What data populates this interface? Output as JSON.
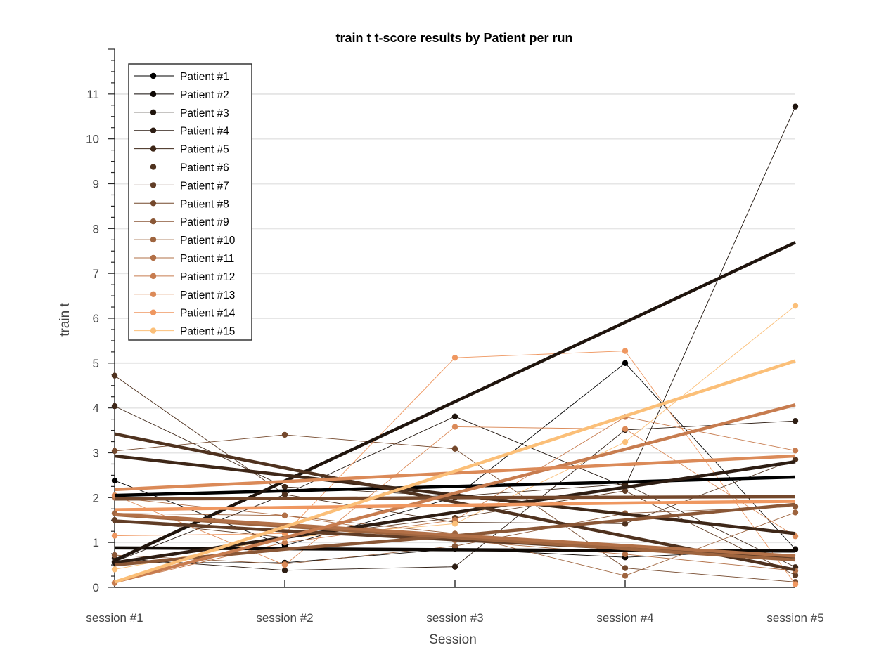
{
  "chart_data": {
    "type": "line",
    "title": "train t  t-score results by Patient per run",
    "xlabel": "Session",
    "ylabel": "train t",
    "categories": [
      "session #1",
      "session #2",
      "session #3",
      "session #4",
      "session #5"
    ],
    "ylim": [
      0,
      12
    ],
    "yticks": [
      0,
      1,
      2,
      3,
      4,
      5,
      6,
      7,
      8,
      9,
      10,
      11
    ],
    "grid": "horizontal",
    "legend_position": "top-left",
    "series": [
      {
        "name": "Patient #1",
        "color": "#000000",
        "values": [
          2.38,
          0.93,
          2.01,
          5.0,
          0.85
        ],
        "trend": [
          2.05,
          2.15,
          2.25,
          2.35,
          2.46
        ]
      },
      {
        "name": "Patient #2",
        "color": "#0f0905",
        "values": [
          0.55,
          0.55,
          0.86,
          0.67,
          0.85
        ],
        "trend": [
          0.88,
          0.86,
          0.84,
          0.82,
          0.81
        ]
      },
      {
        "name": "Patient #3",
        "color": "#1f140d",
        "values": [
          0.57,
          2.07,
          3.81,
          2.24,
          10.72
        ],
        "trend": [
          0.6,
          2.37,
          4.14,
          5.91,
          7.69
        ]
      },
      {
        "name": "Patient #4",
        "color": "#2d1d13",
        "values": [
          0.65,
          0.38,
          0.46,
          3.51,
          3.71
        ],
        "trend": [
          0.55,
          1.11,
          1.67,
          2.23,
          2.8
        ]
      },
      {
        "name": "Patient #5",
        "color": "#3e2718",
        "values": [
          4.04,
          2.24,
          2.03,
          2.3,
          0.45
        ],
        "trend": [
          2.93,
          2.5,
          2.06,
          1.63,
          1.2
        ]
      },
      {
        "name": "Patient #6",
        "color": "#4f321f",
        "values": [
          4.72,
          2.07,
          1.45,
          1.42,
          2.85
        ],
        "trend": [
          3.42,
          2.66,
          1.9,
          1.14,
          0.39
        ]
      },
      {
        "name": "Patient #7",
        "color": "#613d26",
        "values": [
          1.5,
          1.11,
          1.55,
          2.15,
          0.27
        ],
        "trend": [
          1.48,
          1.26,
          1.06,
          0.87,
          0.68
        ]
      },
      {
        "name": "Patient #8",
        "color": "#74482c",
        "values": [
          3.04,
          3.4,
          3.09,
          0.43,
          0.12
        ],
        "trend": [
          1.97,
          1.98,
          2.0,
          2.01,
          2.02
        ]
      },
      {
        "name": "Patient #9",
        "color": "#8a5736",
        "values": [
          0.72,
          0.52,
          0.92,
          1.65,
          1.8
        ],
        "trend": [
          0.5,
          0.85,
          1.15,
          1.5,
          1.85
        ]
      },
      {
        "name": "Patient #10",
        "color": "#9e643e",
        "values": [
          1.65,
          1.6,
          1.2,
          0.26,
          1.67
        ],
        "trend": [
          1.62,
          1.36,
          1.11,
          0.86,
          0.61
        ]
      },
      {
        "name": "Patient #11",
        "color": "#b27047",
        "values": [
          2.0,
          1.6,
          1.05,
          0.74,
          0.37
        ],
        "trend": [
          1.63,
          1.4,
          1.16,
          0.93,
          0.7
        ]
      },
      {
        "name": "Patient #12",
        "color": "#c77c4f",
        "values": [
          0.1,
          1.0,
          1.5,
          3.8,
          3.05
        ],
        "trend": [
          0.12,
          1.11,
          2.1,
          3.08,
          4.07
        ]
      },
      {
        "name": "Patient #13",
        "color": "#db8a58",
        "values": [
          2.05,
          0.5,
          3.58,
          3.53,
          1.14
        ],
        "trend": [
          2.18,
          2.36,
          2.55,
          2.74,
          2.93
        ]
      },
      {
        "name": "Patient #14",
        "color": "#ef9760",
        "values": [
          1.15,
          1.2,
          5.12,
          5.27,
          0.07
        ],
        "trend": [
          1.73,
          1.78,
          1.83,
          1.88,
          1.92
        ]
      },
      {
        "name": "Patient #15",
        "color": "#fbbf78",
        "values": [
          0.4,
          1.1,
          1.42,
          3.24,
          6.28
        ],
        "trend": [
          0.12,
          1.35,
          2.59,
          3.82,
          5.05
        ]
      }
    ]
  }
}
